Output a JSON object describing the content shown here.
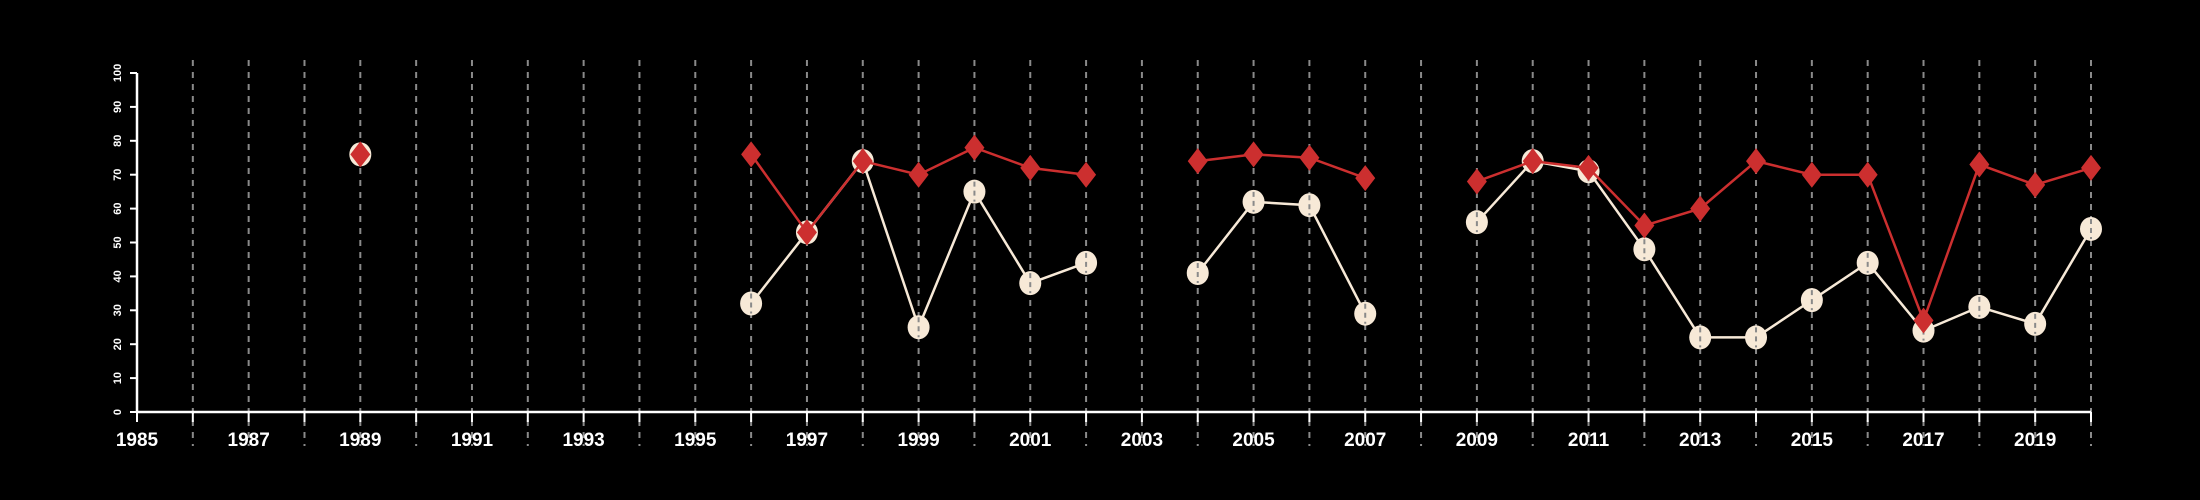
{
  "chart_data": {
    "type": "line",
    "title": "",
    "xlabel": "",
    "ylabel": "",
    "xlim": [
      1985,
      2020
    ],
    "ylim": [
      0,
      100
    ],
    "x_ticks": [
      1985,
      1987,
      1989,
      1991,
      1993,
      1995,
      1997,
      1999,
      2001,
      2003,
      2005,
      2007,
      2009,
      2011,
      2013,
      2015,
      2017,
      2019
    ],
    "y_ticks": [
      0,
      10,
      20,
      30,
      40,
      50,
      60,
      70,
      80,
      90,
      100
    ],
    "grid": "vertical dashed, every year",
    "x": [
      1985,
      1986,
      1987,
      1988,
      1989,
      1990,
      1991,
      1992,
      1993,
      1994,
      1995,
      1996,
      1997,
      1998,
      1999,
      2000,
      2001,
      2002,
      2003,
      2004,
      2005,
      2006,
      2007,
      2008,
      2009,
      2010,
      2011,
      2012,
      2013,
      2014,
      2015,
      2016,
      2017,
      2018,
      2019,
      2020
    ],
    "series": [
      {
        "name": "circles",
        "color": "#f7e9d7",
        "marker": "circle",
        "values": [
          null,
          null,
          null,
          null,
          76,
          null,
          null,
          null,
          null,
          null,
          null,
          32,
          53,
          74,
          25,
          65,
          38,
          44,
          null,
          41,
          62,
          61,
          29,
          null,
          56,
          74,
          71,
          48,
          22,
          22,
          33,
          44,
          24,
          31,
          26,
          54
        ]
      },
      {
        "name": "diamonds",
        "color": "#cc2f2f",
        "marker": "diamond",
        "values": [
          null,
          null,
          null,
          null,
          76,
          null,
          null,
          null,
          null,
          null,
          null,
          76,
          53,
          74,
          70,
          78,
          72,
          70,
          null,
          74,
          76,
          75,
          69,
          null,
          68,
          74,
          72,
          55,
          60,
          74,
          70,
          70,
          27,
          73,
          67,
          72
        ]
      }
    ]
  }
}
